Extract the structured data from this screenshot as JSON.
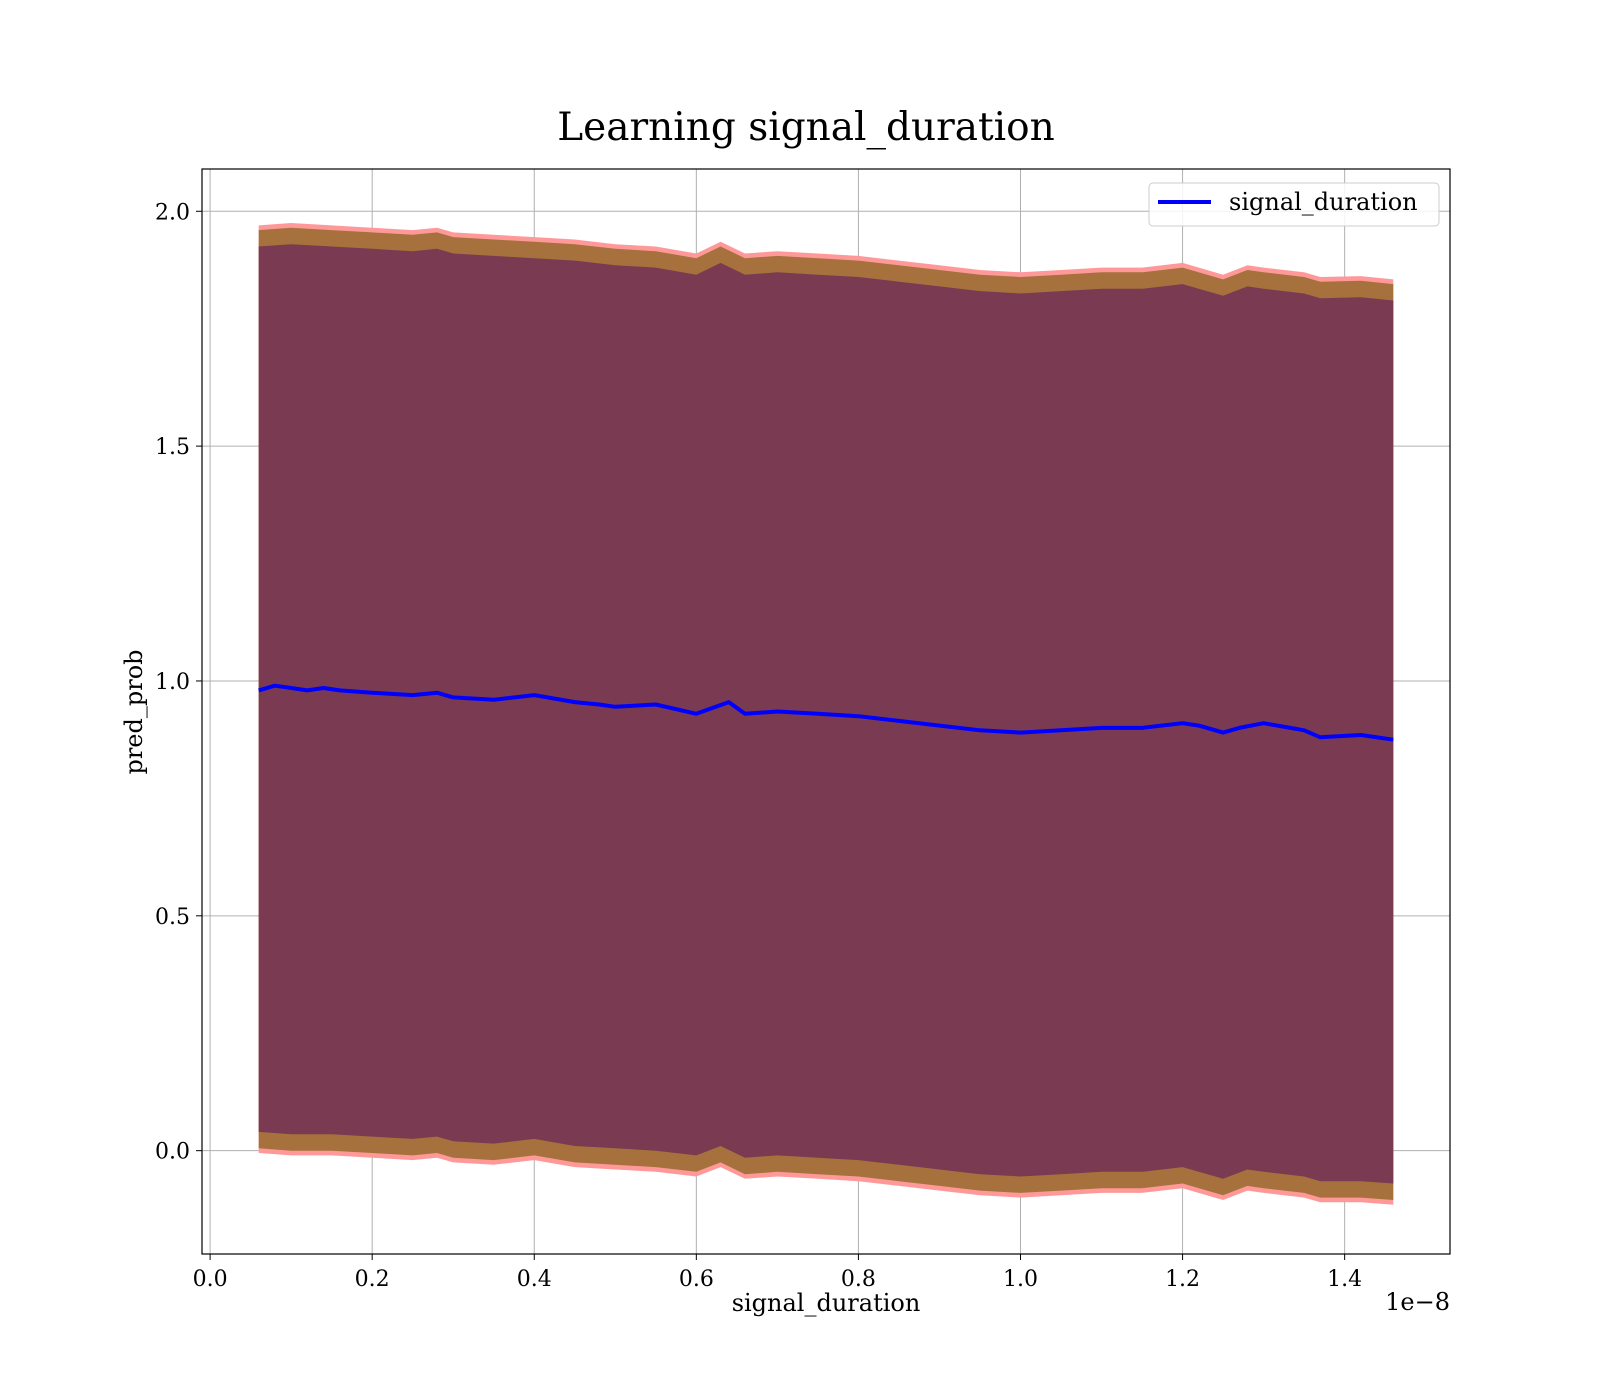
{
  "chart_data": {
    "type": "line",
    "title": "Learning signal_duration",
    "xlabel": "signal_duration",
    "ylabel": "pred_prob",
    "x_offset_label": "1e−8",
    "xlim": [
      -0.01,
      1.53
    ],
    "ylim": [
      -0.22,
      2.09
    ],
    "xticks": [
      0.0,
      0.2,
      0.4,
      0.6,
      0.8,
      1.0,
      1.2,
      1.4
    ],
    "xtick_labels": [
      "0.0",
      "0.2",
      "0.4",
      "0.6",
      "0.8",
      "1.0",
      "1.2",
      "1.4"
    ],
    "yticks": [
      0.0,
      0.5,
      1.0,
      1.5,
      2.0
    ],
    "ytick_labels": [
      "0.0",
      "0.5",
      "1.0",
      "1.5",
      "2.0"
    ],
    "grid": true,
    "legend_position": "top-right",
    "series": [
      {
        "name": "signal_duration",
        "color": "#0000ff",
        "x": [
          0.06,
          0.08,
          0.1,
          0.12,
          0.14,
          0.16,
          0.2,
          0.25,
          0.28,
          0.3,
          0.35,
          0.4,
          0.45,
          0.48,
          0.5,
          0.55,
          0.6,
          0.64,
          0.66,
          0.7,
          0.75,
          0.8,
          0.85,
          0.9,
          0.95,
          1.0,
          1.05,
          1.1,
          1.15,
          1.2,
          1.22,
          1.25,
          1.27,
          1.3,
          1.35,
          1.37,
          1.42,
          1.46
        ],
        "y": [
          0.98,
          0.99,
          0.985,
          0.98,
          0.985,
          0.98,
          0.975,
          0.97,
          0.975,
          0.965,
          0.96,
          0.97,
          0.955,
          0.95,
          0.945,
          0.95,
          0.93,
          0.955,
          0.93,
          0.935,
          0.93,
          0.925,
          0.915,
          0.905,
          0.895,
          0.89,
          0.895,
          0.9,
          0.9,
          0.91,
          0.905,
          0.89,
          0.9,
          0.91,
          0.895,
          0.88,
          0.885,
          0.875
        ]
      }
    ],
    "bands": [
      {
        "role": "outer",
        "color": "#ff9999",
        "x": [
          0.06,
          0.1,
          0.15,
          0.2,
          0.25,
          0.28,
          0.3,
          0.35,
          0.4,
          0.45,
          0.5,
          0.55,
          0.6,
          0.63,
          0.66,
          0.7,
          0.75,
          0.8,
          0.85,
          0.9,
          0.95,
          1.0,
          1.05,
          1.1,
          1.15,
          1.2,
          1.25,
          1.28,
          1.3,
          1.35,
          1.37,
          1.42,
          1.46
        ],
        "upper": [
          1.97,
          1.975,
          1.97,
          1.965,
          1.96,
          1.965,
          1.955,
          1.95,
          1.945,
          1.94,
          1.93,
          1.925,
          1.91,
          1.935,
          1.91,
          1.915,
          1.91,
          1.905,
          1.895,
          1.885,
          1.875,
          1.87,
          1.875,
          1.88,
          1.88,
          1.89,
          1.865,
          1.885,
          1.88,
          1.87,
          1.86,
          1.862,
          1.855
        ],
        "lower": [
          -0.005,
          -0.01,
          -0.01,
          -0.015,
          -0.02,
          -0.015,
          -0.025,
          -0.03,
          -0.02,
          -0.035,
          -0.04,
          -0.045,
          -0.055,
          -0.035,
          -0.06,
          -0.055,
          -0.06,
          -0.065,
          -0.075,
          -0.085,
          -0.095,
          -0.1,
          -0.095,
          -0.09,
          -0.09,
          -0.08,
          -0.105,
          -0.085,
          -0.09,
          -0.1,
          -0.11,
          -0.11,
          -0.115
        ]
      },
      {
        "role": "middle",
        "color": "#a6713d",
        "x": [
          0.06,
          0.1,
          0.15,
          0.2,
          0.25,
          0.28,
          0.3,
          0.35,
          0.4,
          0.45,
          0.5,
          0.55,
          0.6,
          0.63,
          0.66,
          0.7,
          0.75,
          0.8,
          0.85,
          0.9,
          0.95,
          1.0,
          1.05,
          1.1,
          1.15,
          1.2,
          1.25,
          1.28,
          1.3,
          1.35,
          1.37,
          1.42,
          1.46
        ],
        "upper": [
          1.96,
          1.965,
          1.96,
          1.955,
          1.95,
          1.955,
          1.945,
          1.94,
          1.935,
          1.93,
          1.92,
          1.915,
          1.9,
          1.925,
          1.9,
          1.905,
          1.9,
          1.895,
          1.885,
          1.875,
          1.865,
          1.86,
          1.865,
          1.87,
          1.87,
          1.88,
          1.855,
          1.875,
          1.87,
          1.86,
          1.85,
          1.852,
          1.845
        ],
        "lower": [
          0.005,
          0.0,
          0.0,
          -0.005,
          -0.01,
          -0.005,
          -0.015,
          -0.02,
          -0.01,
          -0.025,
          -0.03,
          -0.035,
          -0.045,
          -0.025,
          -0.05,
          -0.045,
          -0.05,
          -0.055,
          -0.065,
          -0.075,
          -0.085,
          -0.09,
          -0.085,
          -0.08,
          -0.08,
          -0.07,
          -0.095,
          -0.075,
          -0.08,
          -0.09,
          -0.1,
          -0.1,
          -0.105
        ]
      },
      {
        "role": "inner",
        "color": "#7a3a52",
        "x": [
          0.06,
          0.1,
          0.15,
          0.2,
          0.25,
          0.28,
          0.3,
          0.35,
          0.4,
          0.45,
          0.5,
          0.55,
          0.6,
          0.63,
          0.66,
          0.7,
          0.75,
          0.8,
          0.85,
          0.9,
          0.95,
          1.0,
          1.05,
          1.1,
          1.15,
          1.2,
          1.25,
          1.28,
          1.3,
          1.35,
          1.37,
          1.42,
          1.46
        ],
        "upper": [
          1.925,
          1.93,
          1.925,
          1.92,
          1.915,
          1.92,
          1.91,
          1.905,
          1.9,
          1.895,
          1.885,
          1.88,
          1.865,
          1.89,
          1.865,
          1.87,
          1.865,
          1.86,
          1.85,
          1.84,
          1.83,
          1.825,
          1.83,
          1.835,
          1.835,
          1.845,
          1.82,
          1.84,
          1.835,
          1.825,
          1.815,
          1.817,
          1.81
        ],
        "lower": [
          0.04,
          0.035,
          0.035,
          0.03,
          0.025,
          0.03,
          0.02,
          0.015,
          0.025,
          0.01,
          0.005,
          0.0,
          -0.01,
          0.01,
          -0.015,
          -0.01,
          -0.015,
          -0.02,
          -0.03,
          -0.04,
          -0.05,
          -0.055,
          -0.05,
          -0.045,
          -0.045,
          -0.035,
          -0.06,
          -0.04,
          -0.045,
          -0.055,
          -0.065,
          -0.065,
          -0.07
        ]
      }
    ]
  }
}
